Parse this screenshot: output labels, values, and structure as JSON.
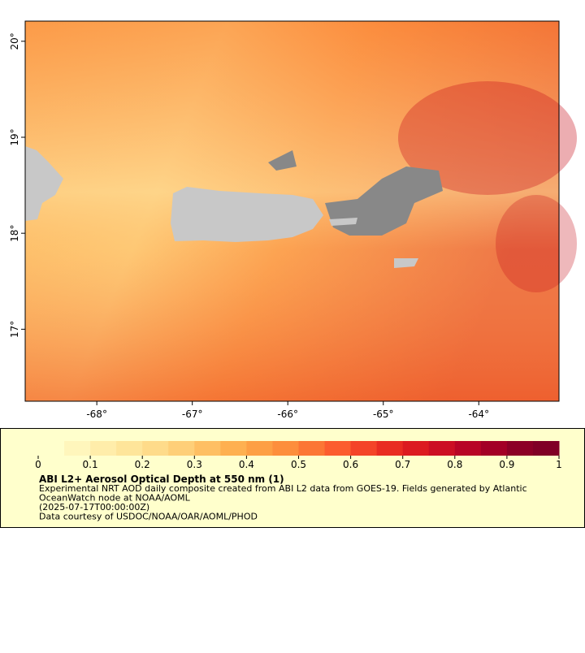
{
  "chart_data": {
    "type": "map",
    "xlim": [
      -68.75,
      -63.16
    ],
    "ylim": [
      16.25,
      20.21
    ],
    "xticks": [
      {
        "value": -68,
        "label": "-68°"
      },
      {
        "value": -67,
        "label": "-67°"
      },
      {
        "value": -66,
        "label": "-66°"
      },
      {
        "value": -65,
        "label": "-65°"
      },
      {
        "value": -64,
        "label": "-64°"
      }
    ],
    "yticks": [
      {
        "value": 17,
        "label": "17°"
      },
      {
        "value": 18,
        "label": "18°"
      },
      {
        "value": 19,
        "label": "19°"
      },
      {
        "value": 20,
        "label": "20°"
      }
    ],
    "colorbar": {
      "lim": [
        0,
        1
      ],
      "ticks": [
        0,
        0.1,
        0.2,
        0.3,
        0.4,
        0.5,
        0.6,
        0.7,
        0.8,
        0.9,
        1
      ],
      "colors": [
        "#ffffcc",
        "#fff6bc",
        "#ffedaa",
        "#fee59a",
        "#fedb8a",
        "#fecf78",
        "#febf63",
        "#feb050",
        "#fd9f44",
        "#fd8e3c",
        "#fc7634",
        "#fc5c2e",
        "#f44428",
        "#e92c22",
        "#dc1b20",
        "#cc0f23",
        "#b80526",
        "#a30026",
        "#8c0026",
        "#800026"
      ]
    },
    "title": "ABI L2+ Aerosol Optical Depth at 550 nm (1)",
    "notes": [
      "Experimental NRT AOD daily composite created from ABI L2 data from GOES-19. Fields generated by Atlantic",
      "OceanWatch node at NOAA/AOML",
      "(2025-07-17T00:00:00Z)",
      "Data courtesy of USDOC/NOAA/OAR/AOML/PHOD"
    ]
  }
}
